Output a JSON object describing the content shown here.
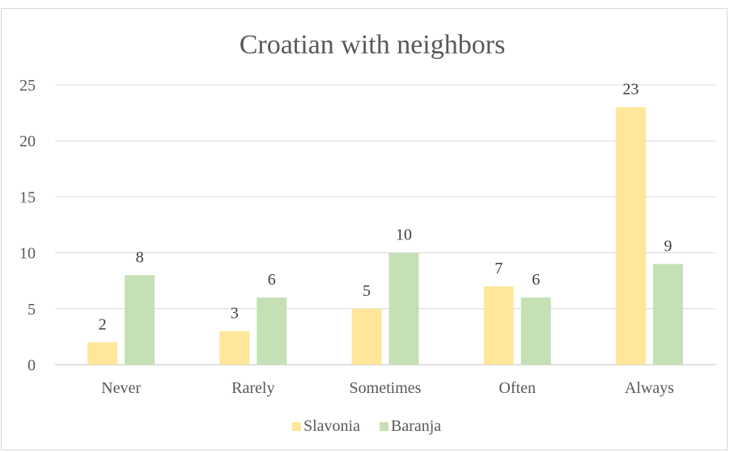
{
  "chart_data": {
    "type": "bar",
    "title": "Croatian with neighbors",
    "categories": [
      "Never",
      "Rarely",
      "Sometimes",
      "Often",
      "Always"
    ],
    "series": [
      {
        "name": "Slavonia",
        "values": [
          2,
          3,
          5,
          7,
          23
        ],
        "color": "#ffe699"
      },
      {
        "name": "Baranja",
        "values": [
          8,
          6,
          10,
          6,
          9
        ],
        "color": "#c5e0b4"
      }
    ],
    "ylim": [
      0,
      25
    ],
    "yticks": [
      0,
      5,
      10,
      15,
      20,
      25
    ],
    "grid": true,
    "legend": "bottom",
    "data_labels": true
  }
}
